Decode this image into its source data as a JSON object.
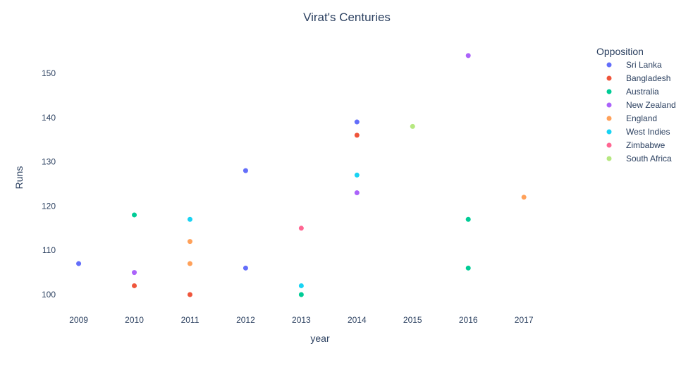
{
  "chart_data": {
    "type": "scatter",
    "title": "Virat's Centuries",
    "xlabel": "year",
    "ylabel": "Runs",
    "x_ticks": [
      "2009",
      "2010",
      "2011",
      "2012",
      "2013",
      "2014",
      "2015",
      "2016",
      "2017"
    ],
    "y_ticks": [
      "100",
      "110",
      "120",
      "130",
      "140",
      "150"
    ],
    "xlim": [
      2008.6,
      2018.1
    ],
    "ylim": [
      96.5,
      157
    ],
    "grid": false,
    "legend": {
      "title": "Opposition",
      "placement": "top-right"
    },
    "series": [
      {
        "name": "Sri Lanka",
        "color": "#636efa",
        "points": [
          [
            2009,
            107
          ],
          [
            2012,
            128
          ],
          [
            2012,
            106
          ],
          [
            2014,
            139
          ]
        ]
      },
      {
        "name": "Bangladesh",
        "color": "#EF553B",
        "points": [
          [
            2010,
            102
          ],
          [
            2011,
            100
          ],
          [
            2014,
            136
          ]
        ]
      },
      {
        "name": "Australia",
        "color": "#00cc96",
        "points": [
          [
            2010,
            118
          ],
          [
            2013,
            100
          ],
          [
            2016,
            117
          ],
          [
            2016,
            106
          ]
        ]
      },
      {
        "name": "New Zealand",
        "color": "#ab63fa",
        "points": [
          [
            2010,
            105
          ],
          [
            2014,
            123
          ],
          [
            2016,
            154
          ]
        ]
      },
      {
        "name": "England",
        "color": "#FFA15A",
        "points": [
          [
            2011,
            112
          ],
          [
            2011,
            107
          ],
          [
            2017,
            122
          ]
        ]
      },
      {
        "name": "West Indies",
        "color": "#19d3f3",
        "points": [
          [
            2011,
            117
          ],
          [
            2013,
            102
          ],
          [
            2014,
            127
          ]
        ]
      },
      {
        "name": "Zimbabwe",
        "color": "#FF6692",
        "points": [
          [
            2013,
            115
          ]
        ]
      },
      {
        "name": "South Africa",
        "color": "#B6E880",
        "points": [
          [
            2015,
            138
          ]
        ]
      }
    ]
  }
}
